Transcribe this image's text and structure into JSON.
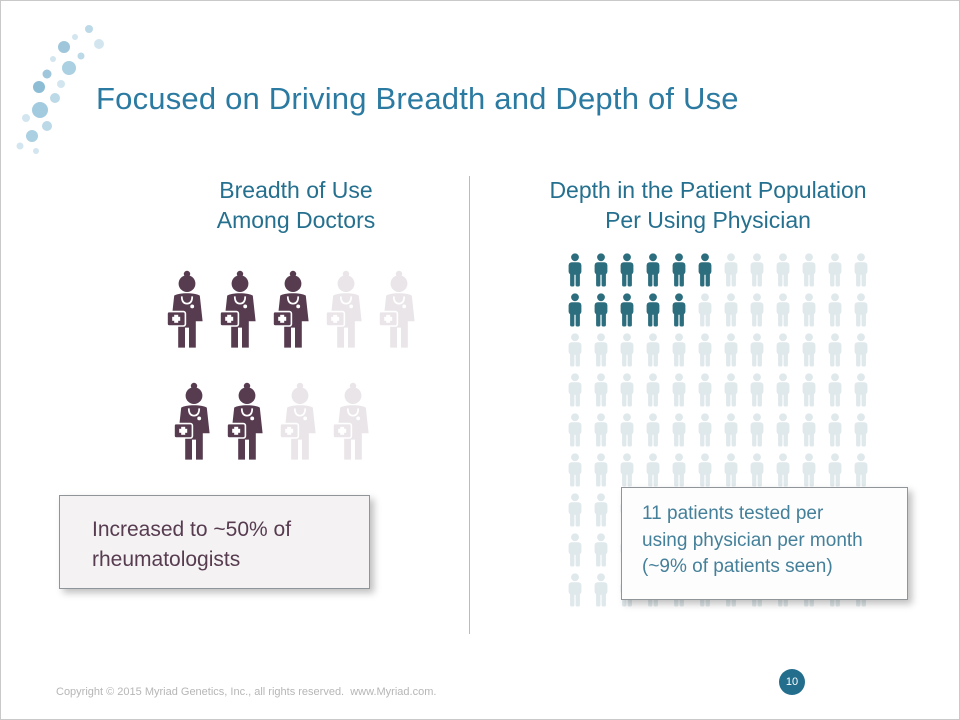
{
  "slide": {
    "title": "Focused on Driving Breadth and Depth of Use",
    "footer": "Copyright © 2015 Myriad Genetics, Inc., all rights reserved.  www.Myriad.com.",
    "page_number": "10",
    "accent_color": "#2b7aa1"
  },
  "left_panel": {
    "heading_line1": "Breadth of Use",
    "heading_line2": "Among Doctors",
    "callout_line1": "Increased to ~50% of",
    "callout_line2": "rheumatologists"
  },
  "right_panel": {
    "heading_line1": "Depth in the Patient Population",
    "heading_line2": "Per Using Physician",
    "callout_line1": "11 patients tested per",
    "callout_line2": "using physician per month",
    "callout_line3": "(~9% of patients seen)"
  },
  "chart_data": [
    {
      "type": "pictogram",
      "title": "Breadth of Use Among Doctors",
      "icon": "doctor-icon",
      "unit": "rheumatologists",
      "rows": [
        [
          1,
          1,
          1,
          0,
          0
        ],
        [
          1,
          1,
          0,
          0
        ]
      ],
      "highlighted_count": 5,
      "total_count": 9,
      "highlighted_share_label": "~50%",
      "annotation": "Increased to ~50% of rheumatologists",
      "highlight_color": "#573c50",
      "muted_color": "#e9e5e8"
    },
    {
      "type": "pictogram",
      "title": "Depth in the Patient Population Per Using Physician",
      "icon": "person-icon",
      "unit": "patients",
      "columns": 12,
      "row_count": 9,
      "highlighted_per_row": [
        6,
        5,
        0,
        0,
        0,
        0,
        0,
        0,
        0
      ],
      "highlighted_count": 11,
      "highlighted_share_label": "~9%",
      "annotation": "11 patients tested per using physician per month (~9% of patients seen)",
      "highlight_color": "#2d6e7e",
      "muted_color": "#dfe8eb"
    }
  ]
}
